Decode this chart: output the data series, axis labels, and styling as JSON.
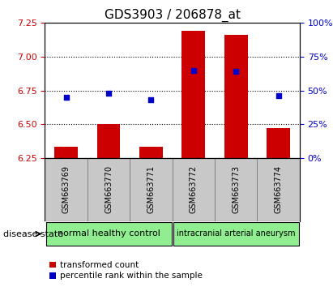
{
  "title": "GDS3903 / 206878_at",
  "samples": [
    "GSM663769",
    "GSM663770",
    "GSM663771",
    "GSM663772",
    "GSM663773",
    "GSM663774"
  ],
  "transformed_count": [
    6.33,
    6.5,
    6.33,
    7.19,
    7.16,
    6.47
  ],
  "percentile_rank": [
    45,
    48,
    43,
    65,
    64,
    46
  ],
  "ylim_left": [
    6.25,
    7.25
  ],
  "ylim_right": [
    0,
    100
  ],
  "yticks_left": [
    6.25,
    6.5,
    6.75,
    7.0,
    7.25
  ],
  "yticks_right": [
    0,
    25,
    50,
    75,
    100
  ],
  "grid_lines": [
    6.5,
    6.75,
    7.0
  ],
  "bar_color": "#cc0000",
  "scatter_color": "#0000cc",
  "bar_width": 0.55,
  "group_ranges": [
    [
      0,
      2
    ],
    [
      3,
      5
    ]
  ],
  "group_labels": [
    "normal healthy control",
    "intracranial arterial aneurysm"
  ],
  "group_fontsizes": [
    8,
    7
  ],
  "disease_state_label": "disease state",
  "legend_labels": [
    "transformed count",
    "percentile rank within the sample"
  ],
  "legend_colors": [
    "#cc0000",
    "#0000cc"
  ],
  "title_fontsize": 11,
  "left_tick_color": "#cc0000",
  "right_tick_color": "#0000cc",
  "background_color": "#ffffff",
  "sample_box_color": "#c8c8c8",
  "group_box_color": "#90EE90"
}
